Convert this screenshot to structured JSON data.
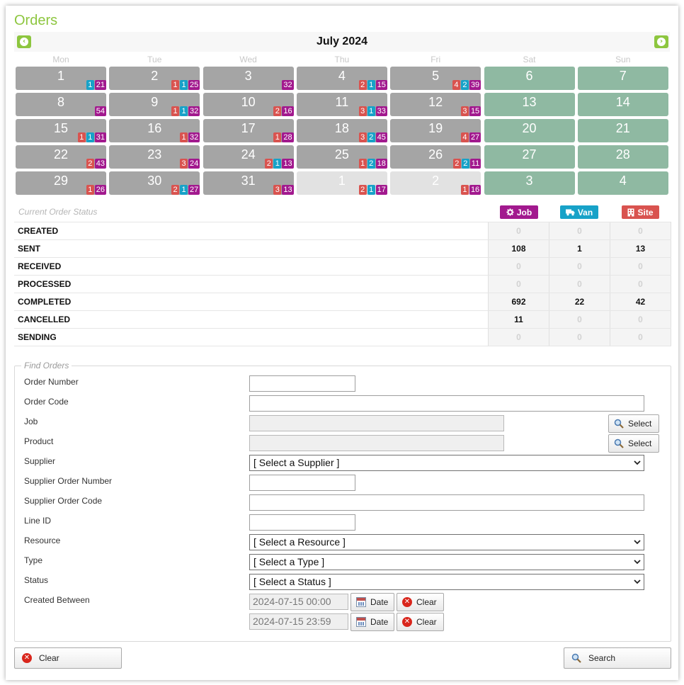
{
  "page": {
    "title": "Orders"
  },
  "colors": {
    "job": "#a2198e",
    "van": "#17a2c8",
    "site": "#d9534f",
    "weekday_cell": "#a5a5a5",
    "weekend_cell": "#8fb9a2",
    "other_month_cell": "#e2e2e2",
    "accent": "#8dc63f"
  },
  "calendar": {
    "month_title": "July 2024",
    "prev_icon": "chevron-left-icon",
    "next_icon": "chevron-right-icon",
    "weekdays": [
      "Mon",
      "Tue",
      "Wed",
      "Thu",
      "Fri",
      "Sat",
      "Sun"
    ],
    "weeks": [
      [
        {
          "day": "1",
          "type": "weekday",
          "badges": [
            {
              "kind": "van",
              "value": "1"
            },
            {
              "kind": "job",
              "value": "21"
            }
          ]
        },
        {
          "day": "2",
          "type": "weekday",
          "badges": [
            {
              "kind": "site",
              "value": "1"
            },
            {
              "kind": "van",
              "value": "1"
            },
            {
              "kind": "job",
              "value": "25"
            }
          ]
        },
        {
          "day": "3",
          "type": "weekday",
          "badges": [
            {
              "kind": "job",
              "value": "32"
            }
          ]
        },
        {
          "day": "4",
          "type": "weekday",
          "badges": [
            {
              "kind": "site",
              "value": "2"
            },
            {
              "kind": "van",
              "value": "1"
            },
            {
              "kind": "job",
              "value": "15"
            }
          ]
        },
        {
          "day": "5",
          "type": "weekday",
          "badges": [
            {
              "kind": "site",
              "value": "4"
            },
            {
              "kind": "van",
              "value": "2"
            },
            {
              "kind": "job",
              "value": "39"
            }
          ]
        },
        {
          "day": "6",
          "type": "weekend",
          "badges": []
        },
        {
          "day": "7",
          "type": "weekend",
          "badges": []
        }
      ],
      [
        {
          "day": "8",
          "type": "weekday",
          "badges": [
            {
              "kind": "job",
              "value": "54"
            }
          ]
        },
        {
          "day": "9",
          "type": "weekday",
          "badges": [
            {
              "kind": "site",
              "value": "1"
            },
            {
              "kind": "van",
              "value": "1"
            },
            {
              "kind": "job",
              "value": "32"
            }
          ]
        },
        {
          "day": "10",
          "type": "weekday",
          "badges": [
            {
              "kind": "site",
              "value": "2"
            },
            {
              "kind": "job",
              "value": "16"
            }
          ]
        },
        {
          "day": "11",
          "type": "weekday",
          "badges": [
            {
              "kind": "site",
              "value": "3"
            },
            {
              "kind": "van",
              "value": "1"
            },
            {
              "kind": "job",
              "value": "33"
            }
          ]
        },
        {
          "day": "12",
          "type": "weekday",
          "badges": [
            {
              "kind": "site",
              "value": "3"
            },
            {
              "kind": "job",
              "value": "15"
            }
          ]
        },
        {
          "day": "13",
          "type": "weekend",
          "badges": []
        },
        {
          "day": "14",
          "type": "weekend",
          "badges": []
        }
      ],
      [
        {
          "day": "15",
          "type": "weekday",
          "badges": [
            {
              "kind": "site",
              "value": "1"
            },
            {
              "kind": "van",
              "value": "1"
            },
            {
              "kind": "job",
              "value": "31"
            }
          ]
        },
        {
          "day": "16",
          "type": "weekday",
          "badges": [
            {
              "kind": "site",
              "value": "1"
            },
            {
              "kind": "job",
              "value": "32"
            }
          ]
        },
        {
          "day": "17",
          "type": "weekday",
          "badges": [
            {
              "kind": "site",
              "value": "1"
            },
            {
              "kind": "job",
              "value": "28"
            }
          ]
        },
        {
          "day": "18",
          "type": "weekday",
          "badges": [
            {
              "kind": "site",
              "value": "3"
            },
            {
              "kind": "van",
              "value": "2"
            },
            {
              "kind": "job",
              "value": "45"
            }
          ]
        },
        {
          "day": "19",
          "type": "weekday",
          "badges": [
            {
              "kind": "site",
              "value": "4"
            },
            {
              "kind": "job",
              "value": "27"
            }
          ]
        },
        {
          "day": "20",
          "type": "weekend",
          "badges": []
        },
        {
          "day": "21",
          "type": "weekend",
          "badges": []
        }
      ],
      [
        {
          "day": "22",
          "type": "weekday",
          "badges": [
            {
              "kind": "site",
              "value": "2"
            },
            {
              "kind": "job",
              "value": "43"
            }
          ]
        },
        {
          "day": "23",
          "type": "weekday",
          "badges": [
            {
              "kind": "site",
              "value": "3"
            },
            {
              "kind": "job",
              "value": "24"
            }
          ]
        },
        {
          "day": "24",
          "type": "weekday",
          "badges": [
            {
              "kind": "site",
              "value": "2"
            },
            {
              "kind": "van",
              "value": "1"
            },
            {
              "kind": "job",
              "value": "13"
            }
          ]
        },
        {
          "day": "25",
          "type": "weekday",
          "badges": [
            {
              "kind": "site",
              "value": "1"
            },
            {
              "kind": "van",
              "value": "2"
            },
            {
              "kind": "job",
              "value": "18"
            }
          ]
        },
        {
          "day": "26",
          "type": "weekday",
          "badges": [
            {
              "kind": "site",
              "value": "2"
            },
            {
              "kind": "van",
              "value": "2"
            },
            {
              "kind": "job",
              "value": "11"
            }
          ]
        },
        {
          "day": "27",
          "type": "weekend",
          "badges": []
        },
        {
          "day": "28",
          "type": "weekend",
          "badges": []
        }
      ],
      [
        {
          "day": "29",
          "type": "weekday",
          "badges": [
            {
              "kind": "site",
              "value": "1"
            },
            {
              "kind": "job",
              "value": "26"
            }
          ]
        },
        {
          "day": "30",
          "type": "weekday",
          "badges": [
            {
              "kind": "site",
              "value": "2"
            },
            {
              "kind": "van",
              "value": "1"
            },
            {
              "kind": "job",
              "value": "27"
            }
          ]
        },
        {
          "day": "31",
          "type": "weekday",
          "badges": [
            {
              "kind": "site",
              "value": "3"
            },
            {
              "kind": "job",
              "value": "13"
            }
          ]
        },
        {
          "day": "1",
          "type": "other",
          "badges": [
            {
              "kind": "site",
              "value": "2"
            },
            {
              "kind": "van",
              "value": "1"
            },
            {
              "kind": "job",
              "value": "17"
            }
          ]
        },
        {
          "day": "2",
          "type": "other",
          "badges": [
            {
              "kind": "site",
              "value": "1"
            },
            {
              "kind": "job",
              "value": "16"
            }
          ]
        },
        {
          "day": "3",
          "type": "weekend",
          "badges": []
        },
        {
          "day": "4",
          "type": "weekend",
          "badges": []
        }
      ]
    ]
  },
  "order_status": {
    "caption": "Current Order Status",
    "columns": [
      {
        "label": "Job",
        "kind": "job",
        "icon": "gear-icon"
      },
      {
        "label": "Van",
        "kind": "van",
        "icon": "truck-icon"
      },
      {
        "label": "Site",
        "kind": "site",
        "icon": "building-icon"
      }
    ],
    "rows": [
      {
        "status": "CREATED",
        "values": [
          "0",
          "0",
          "0"
        ]
      },
      {
        "status": "SENT",
        "values": [
          "108",
          "1",
          "13"
        ]
      },
      {
        "status": "RECEIVED",
        "values": [
          "0",
          "0",
          "0"
        ]
      },
      {
        "status": "PROCESSED",
        "values": [
          "0",
          "0",
          "0"
        ]
      },
      {
        "status": "COMPLETED",
        "values": [
          "692",
          "22",
          "42"
        ]
      },
      {
        "status": "CANCELLED",
        "values": [
          "11",
          "0",
          "0"
        ]
      },
      {
        "status": "SENDING",
        "values": [
          "0",
          "0",
          "0"
        ]
      }
    ]
  },
  "find_orders": {
    "legend": "Find Orders",
    "labels": {
      "order_number": "Order Number",
      "order_code": "Order Code",
      "job": "Job",
      "product": "Product",
      "supplier": "Supplier",
      "supplier_order_number": "Supplier Order Number",
      "supplier_order_code": "Supplier Order Code",
      "line_id": "Line ID",
      "resource": "Resource",
      "type": "Type",
      "status": "Status",
      "created_between": "Created Between"
    },
    "values": {
      "order_number": "",
      "order_code": "",
      "job": "",
      "product": "",
      "supplier_order_number": "",
      "supplier_order_code": "",
      "line_id": "",
      "created_from": "2024-07-15 00:00",
      "created_to": "2024-07-15 23:59"
    },
    "selects": {
      "supplier": "[ Select a Supplier ]",
      "resource": "[ Select a Resource ]",
      "type": "[ Select a Type ]",
      "status": "[ Select a Status ]"
    },
    "buttons": {
      "select": "Select",
      "date": "Date",
      "clear": "Clear"
    }
  },
  "footer": {
    "clear_label": "Clear",
    "search_label": "Search"
  }
}
